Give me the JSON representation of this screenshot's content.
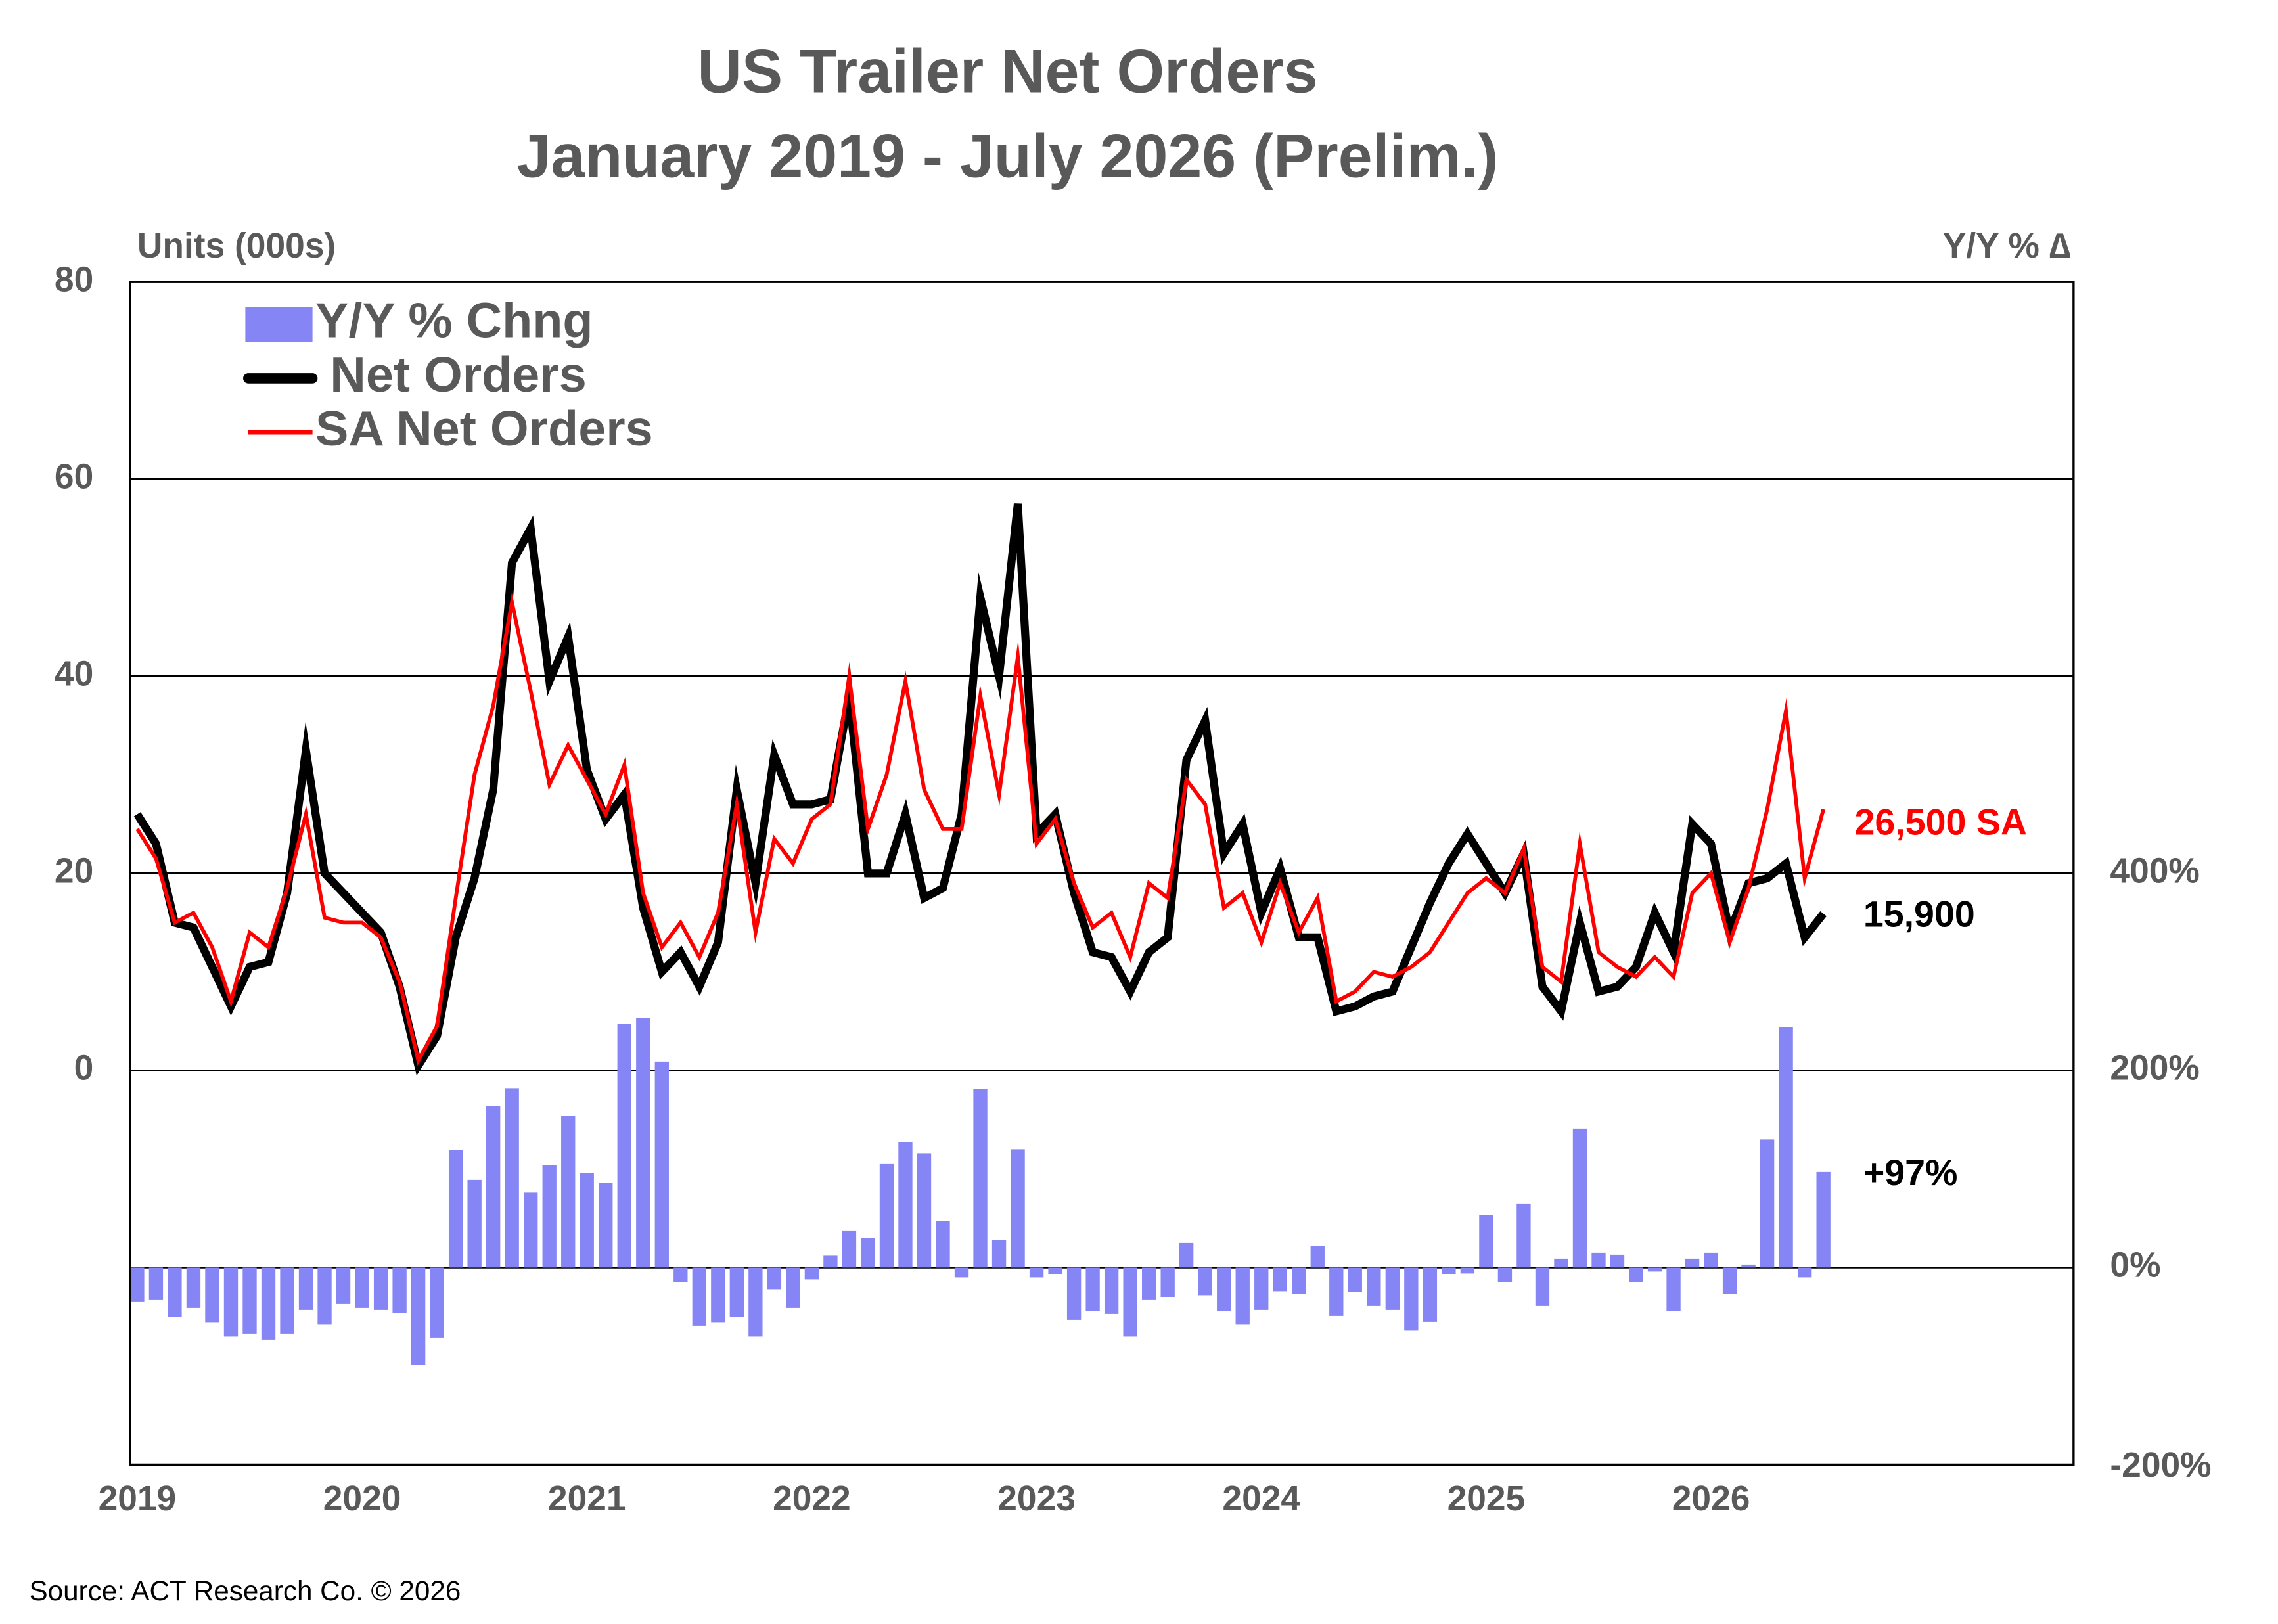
{
  "chart_data": {
    "type": "combo",
    "title": "US Trailer Net Orders",
    "subtitle": "January 2019 - July 2026 (Prelim.)",
    "ylabel": "Units (000s)",
    "y2label": "Y/Y % ∆",
    "source": "Source: ACT Research Co. © 2026",
    "categories": [
      "2019",
      null,
      null,
      null,
      null,
      null,
      null,
      null,
      null,
      null,
      null,
      null,
      "2020",
      null,
      null,
      null,
      null,
      null,
      null,
      null,
      null,
      null,
      null,
      null,
      "2021",
      null,
      null,
      null,
      null,
      null,
      null,
      null,
      null,
      null,
      null,
      null,
      "2022",
      null,
      null,
      null,
      null,
      null,
      null,
      null,
      null,
      null,
      null,
      null,
      "2023",
      null,
      null,
      null,
      null,
      null,
      null,
      null,
      null,
      null,
      null,
      null,
      "2024",
      null,
      null,
      null,
      null,
      null,
      null,
      null,
      null,
      null,
      null,
      null,
      "2025",
      null,
      null,
      null,
      null,
      null,
      null,
      null,
      null,
      null,
      null,
      null,
      "2026",
      null,
      null,
      null,
      null,
      null,
      null
    ],
    "ylim": [
      -40,
      80
    ],
    "yticks": [
      0,
      20,
      40,
      60,
      80
    ],
    "y2lim": [
      -200,
      1000
    ],
    "y2ticks": [
      {
        "value": -200,
        "label": "-200%"
      },
      {
        "value": 0,
        "label": "0%"
      },
      {
        "value": 200,
        "label": "200%"
      },
      {
        "value": 400,
        "label": "400%"
      }
    ],
    "grid": true,
    "legend": "top-left",
    "series": [
      {
        "name": "Y/Y % Chng",
        "type": "bar",
        "axis": "y2",
        "color": "#8585f5",
        "values": [
          -35,
          -33,
          -50,
          -41,
          -56,
          -70,
          -67,
          -73,
          -67,
          -43,
          -58,
          -37,
          -41,
          -43,
          -46,
          -99,
          -71,
          119,
          89,
          164,
          182,
          76,
          104,
          154,
          96,
          86,
          247,
          253,
          209,
          -15,
          -59,
          -56,
          -50,
          -70,
          -22,
          -41,
          -12,
          12,
          37,
          30,
          105,
          127,
          116,
          47,
          -10,
          181,
          28,
          120,
          -10,
          -7,
          -53,
          -44,
          -47,
          -70,
          -33,
          -30,
          25,
          -28,
          -44,
          -58,
          -43,
          -24,
          -27,
          22,
          -49,
          -25,
          -39,
          -43,
          -64,
          -55,
          -7,
          -6,
          53,
          -15,
          65,
          -39,
          9,
          141,
          15,
          13,
          -15,
          -4,
          -44,
          9,
          15,
          -27,
          3,
          130,
          244,
          -10,
          97
        ]
      },
      {
        "name": "Net Orders",
        "type": "line",
        "color": "#000000",
        "values": [
          26,
          23,
          15,
          14.5,
          10.5,
          6.5,
          10.5,
          11,
          18,
          32.5,
          20,
          18,
          16,
          14,
          8.5,
          0.5,
          3.5,
          13.5,
          19.5,
          28.5,
          51.5,
          55,
          39.5,
          44,
          30.5,
          25.5,
          28,
          16.5,
          10,
          12,
          8.5,
          13,
          28.5,
          19,
          32,
          27,
          27,
          27.5,
          38,
          20,
          20,
          26,
          17.5,
          18.5,
          26,
          48,
          40,
          57.5,
          24,
          26,
          18,
          12,
          11.5,
          8,
          12,
          13.5,
          31.5,
          35.5,
          22,
          25,
          16,
          20.5,
          13.5,
          13.5,
          6,
          6.5,
          7.5,
          8,
          12.5,
          17,
          21,
          24,
          21,
          18,
          22,
          8.5,
          6,
          15,
          8,
          8.5,
          10.5,
          16,
          12,
          25,
          23,
          14,
          19,
          19.5,
          21,
          13.5,
          15.9
        ]
      },
      {
        "name": "SA Net Orders",
        "type": "line",
        "color": "#ff0000",
        "values": [
          24.5,
          21.5,
          15,
          16,
          12.5,
          7,
          14,
          12.5,
          18.5,
          26,
          15.5,
          15,
          15,
          13.5,
          9,
          1,
          4.5,
          17.5,
          30,
          37,
          47.5,
          38.5,
          29,
          33,
          29.5,
          26,
          31,
          18,
          12.5,
          15,
          11.5,
          16,
          27,
          14,
          23.5,
          21,
          25.5,
          27,
          40,
          24.5,
          30,
          39.5,
          28.5,
          24.5,
          24.5,
          38,
          28,
          42,
          23,
          25.5,
          19,
          14.5,
          16,
          11.5,
          19,
          17.5,
          29.5,
          27,
          16.5,
          18,
          13,
          19,
          14,
          17.5,
          7,
          8,
          10,
          9.5,
          10.5,
          12,
          15,
          18,
          19.5,
          18,
          22.5,
          10.5,
          9,
          23,
          12,
          10.5,
          9.5,
          11.5,
          9.5,
          18,
          20,
          13,
          18.5,
          26.5,
          36.5,
          19.5,
          26.5
        ]
      }
    ],
    "annotations": [
      "26,500 SA",
      "15,900",
      "+97%"
    ]
  }
}
